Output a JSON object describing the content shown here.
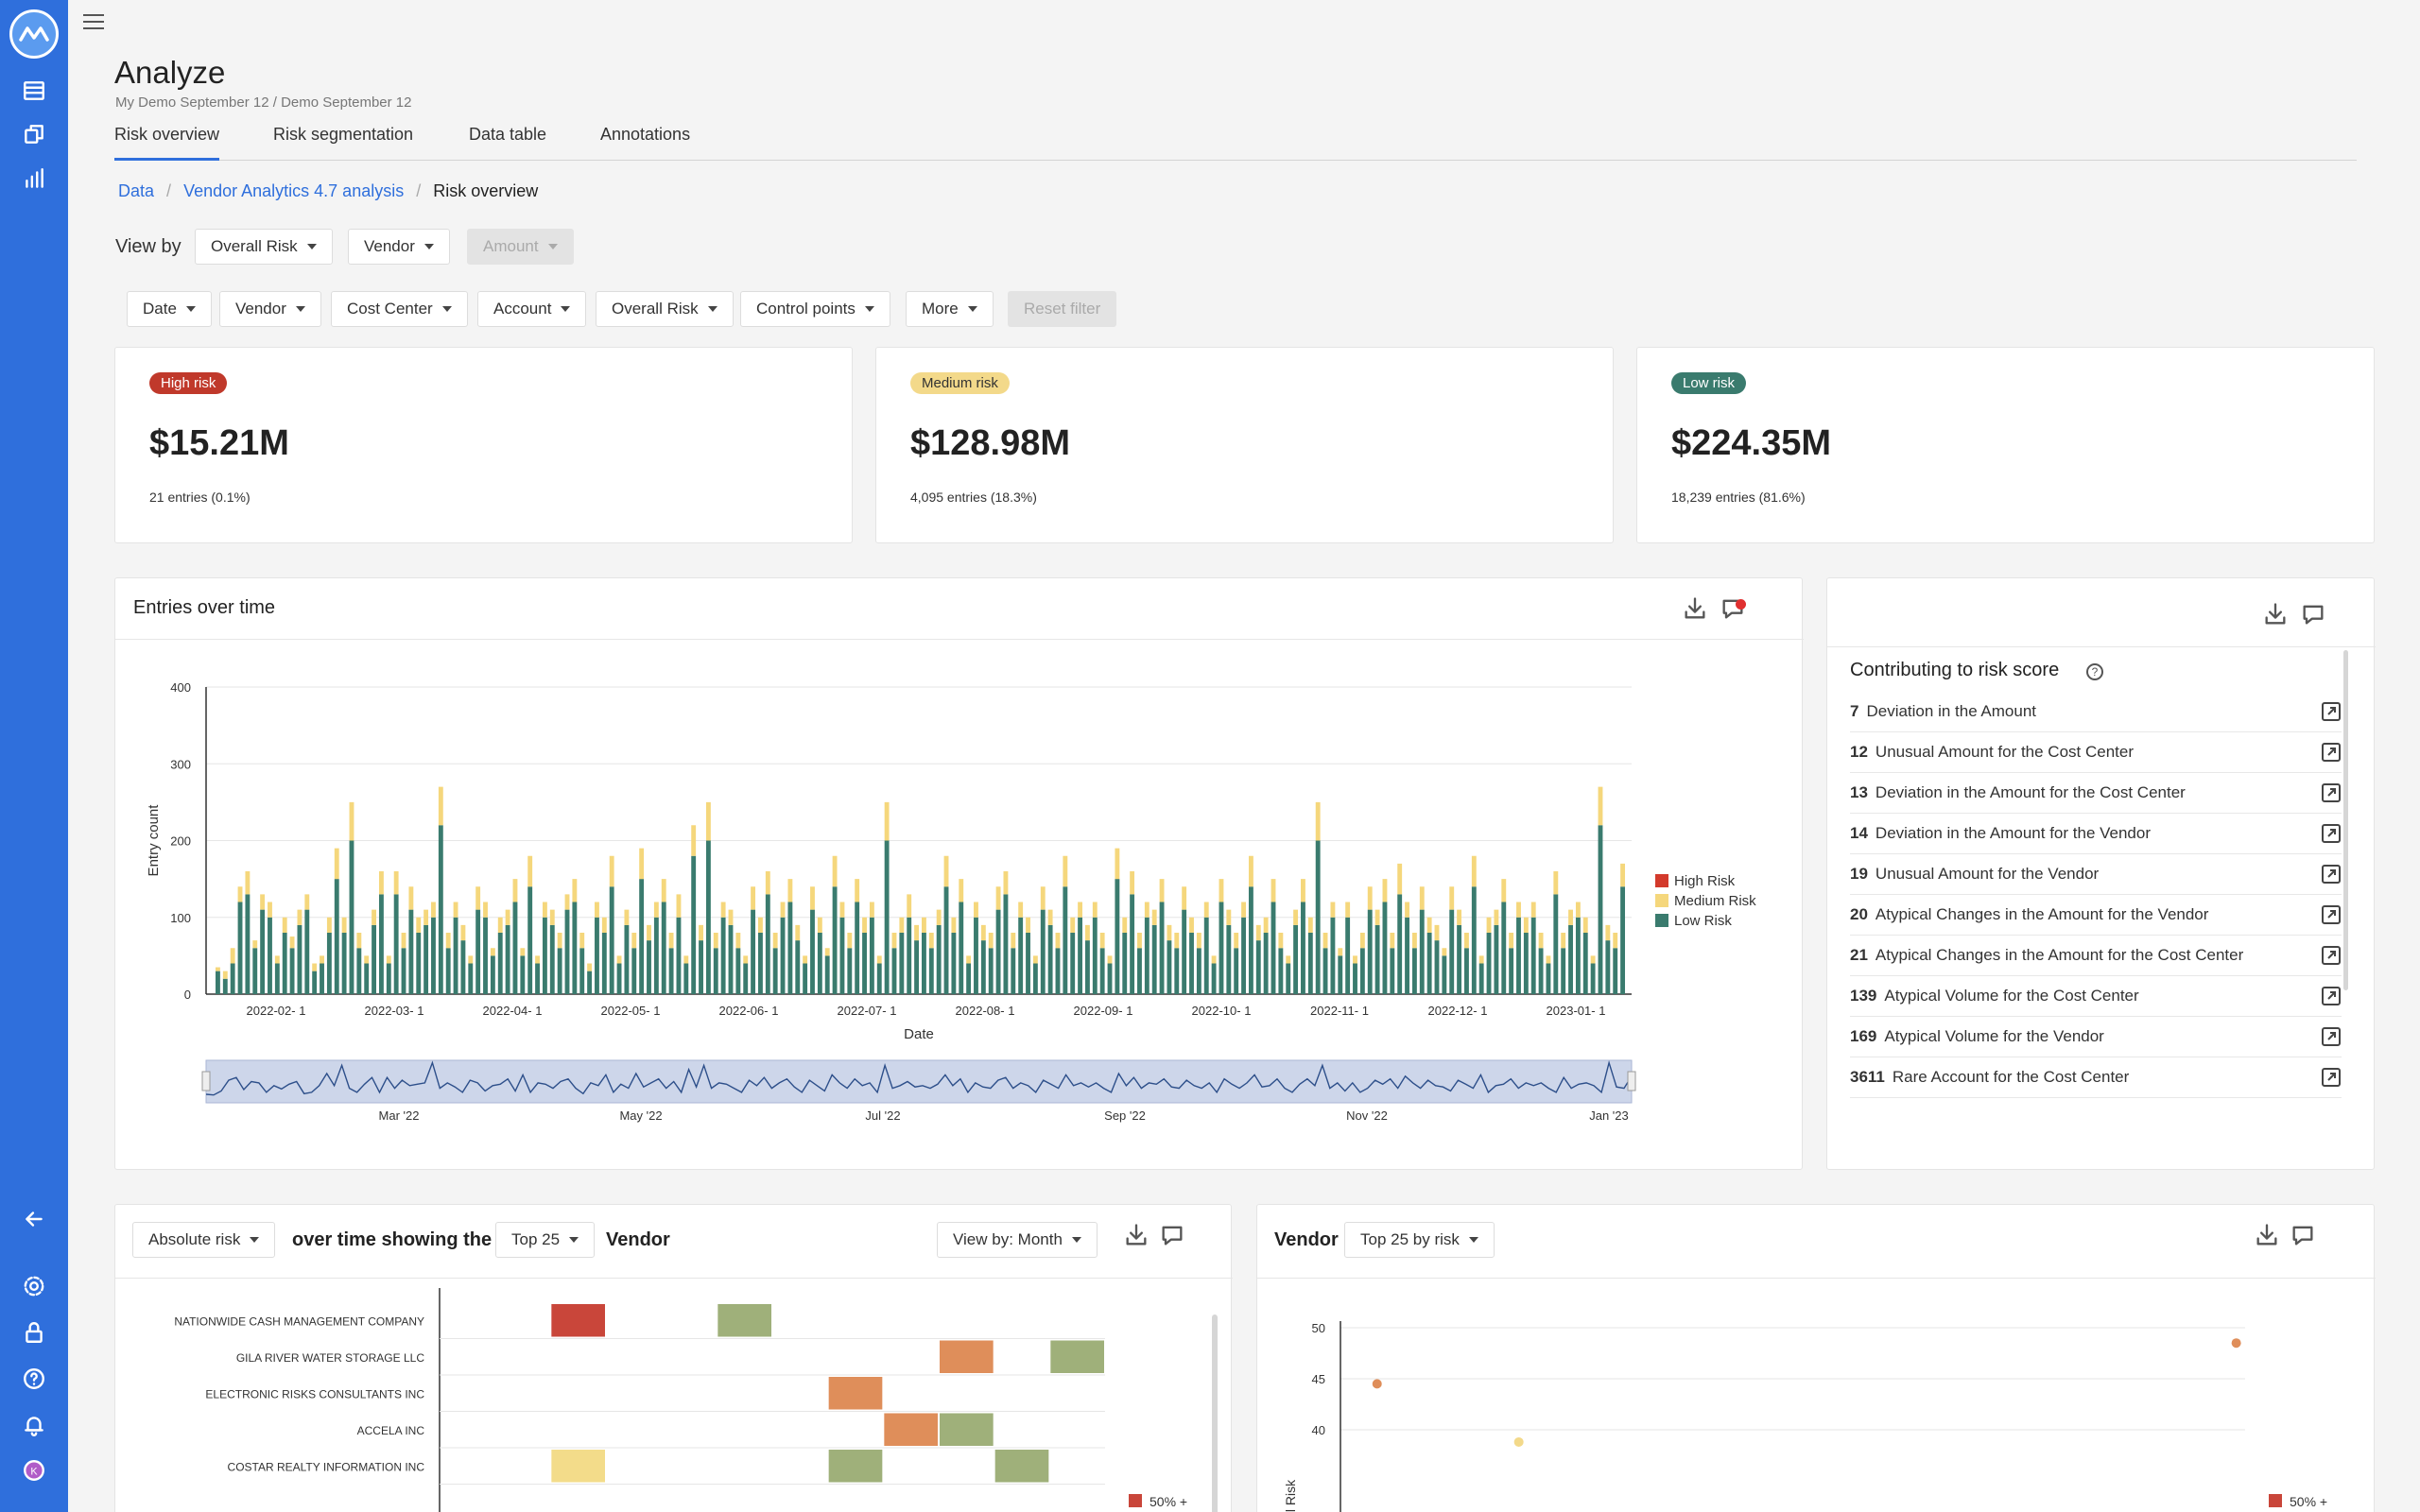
{
  "header": {
    "title": "Analyze",
    "subtitle": "My Demo September 12 / Demo September 12"
  },
  "tabs": [
    {
      "label": "Risk overview",
      "active": true
    },
    {
      "label": "Risk segmentation",
      "active": false
    },
    {
      "label": "Data table",
      "active": false
    },
    {
      "label": "Annotations",
      "active": false
    }
  ],
  "breadcrumb": [
    "Data",
    "Vendor Analytics 4.7 analysis",
    "Risk overview"
  ],
  "view_by": {
    "label": "View by",
    "options": [
      "Overall Risk",
      "Vendor",
      "Amount"
    ]
  },
  "filters": {
    "items": [
      "Date",
      "Vendor",
      "Cost Center",
      "Account",
      "Overall Risk",
      "Control points",
      "More"
    ],
    "reset_label": "Reset filter"
  },
  "kpis": [
    {
      "badge": "High risk",
      "value": "$15.21M",
      "sub": "21 entries (0.1%)",
      "color": "#c0392b"
    },
    {
      "badge": "Medium risk",
      "value": "$128.98M",
      "sub": "4,095 entries (18.3%)",
      "color": "#f3d98a"
    },
    {
      "badge": "Low risk",
      "value": "$224.35M",
      "sub": "18,239 entries (81.6%)",
      "color": "#3a7b6e"
    }
  ],
  "entries_panel": {
    "title": "Entries over time",
    "chart_data": {
      "type": "bar",
      "stacked": true,
      "ylabel": "Entry count",
      "xlabel": "Date",
      "ylim": [
        0,
        400
      ],
      "yticks": [
        0,
        100,
        200,
        300,
        400
      ],
      "xticks": [
        "2022-02- 1",
        "2022-03- 1",
        "2022-04- 1",
        "2022-05- 1",
        "2022-06- 1",
        "2022-07- 1",
        "2022-08- 1",
        "2022-09- 1",
        "2022-10- 1",
        "2022-11- 1",
        "2022-12- 1",
        "2023-01- 1"
      ],
      "navigator_ticks": [
        "Mar '22",
        "May '22",
        "Jul '22",
        "Sep '22",
        "Nov '22",
        "Jan '23"
      ],
      "legend": [
        {
          "name": "High Risk",
          "color": "#d33a2c"
        },
        {
          "name": "Medium Risk",
          "color": "#f5d77c"
        },
        {
          "name": "Low Risk",
          "color": "#3a7b6e"
        }
      ],
      "legend_position": "right",
      "series": [
        {
          "name": "Low Risk",
          "values": [
            30,
            20,
            40,
            120,
            130,
            60,
            110,
            100,
            40,
            80,
            60,
            90,
            110,
            30,
            40,
            80,
            150,
            80,
            200,
            60,
            40,
            90,
            130,
            40,
            130,
            60,
            110,
            80,
            90,
            100,
            220,
            60,
            100,
            70,
            40,
            110,
            100,
            50,
            80,
            90,
            120,
            50,
            140,
            40,
            100,
            90,
            60,
            110,
            120,
            60,
            30,
            100,
            80,
            140,
            40,
            90,
            60,
            150,
            70,
            100,
            120,
            60,
            100,
            40,
            180,
            70,
            200,
            60,
            100,
            90,
            60,
            40,
            110,
            80,
            130,
            60,
            100,
            120,
            70,
            40,
            110,
            80,
            50,
            140,
            100,
            60,
            120,
            80,
            100,
            40,
            200,
            60,
            80,
            100,
            70,
            80,
            60,
            90,
            140,
            80,
            120,
            40,
            100,
            70,
            60,
            110,
            130,
            60,
            100,
            80,
            40,
            110,
            90,
            60,
            140,
            80,
            100,
            70,
            100,
            60,
            40,
            150,
            80,
            130,
            60,
            100,
            90,
            120,
            70,
            60,
            110,
            80,
            60,
            100,
            40,
            120,
            90,
            60,
            100,
            140,
            70,
            80,
            120,
            60,
            40,
            90,
            120,
            80,
            200,
            60,
            100,
            50,
            100,
            40,
            60,
            110,
            90,
            120,
            60,
            130,
            100,
            60,
            110,
            80,
            70,
            50,
            110,
            90,
            60,
            140,
            40,
            80,
            90,
            120,
            60,
            100,
            80,
            100,
            60,
            40,
            130,
            60,
            90,
            100,
            80,
            40,
            220,
            70,
            60,
            140
          ]
        },
        {
          "name": "Medium Risk",
          "values": [
            5,
            10,
            20,
            20,
            30,
            10,
            20,
            20,
            10,
            20,
            15,
            20,
            20,
            10,
            10,
            20,
            40,
            20,
            50,
            20,
            10,
            20,
            30,
            10,
            30,
            20,
            30,
            20,
            20,
            20,
            50,
            20,
            20,
            20,
            10,
            30,
            20,
            10,
            20,
            20,
            30,
            10,
            40,
            10,
            20,
            20,
            20,
            20,
            30,
            20,
            10,
            20,
            20,
            40,
            10,
            20,
            20,
            40,
            20,
            20,
            30,
            20,
            30,
            10,
            40,
            20,
            50,
            20,
            20,
            20,
            20,
            10,
            30,
            20,
            30,
            20,
            20,
            30,
            20,
            10,
            30,
            20,
            10,
            40,
            20,
            20,
            30,
            20,
            20,
            10,
            50,
            20,
            20,
            30,
            20,
            20,
            20,
            20,
            40,
            20,
            30,
            10,
            20,
            20,
            20,
            30,
            30,
            20,
            20,
            20,
            10,
            30,
            20,
            20,
            40,
            20,
            20,
            20,
            20,
            20,
            10,
            40,
            20,
            30,
            20,
            20,
            20,
            30,
            20,
            20,
            30,
            20,
            20,
            20,
            10,
            30,
            20,
            20,
            20,
            40,
            20,
            20,
            30,
            20,
            10,
            20,
            30,
            20,
            50,
            20,
            20,
            10,
            20,
            10,
            20,
            30,
            20,
            30,
            20,
            40,
            20,
            20,
            30,
            20,
            20,
            10,
            30,
            20,
            20,
            40,
            10,
            20,
            20,
            30,
            20,
            20,
            20,
            20,
            20,
            10,
            30,
            20,
            20,
            20,
            20,
            10,
            50,
            20,
            20,
            30
          ]
        }
      ]
    }
  },
  "contributing": {
    "title": "Contributing to risk score",
    "items": [
      {
        "code": "7",
        "label": "Deviation in the Amount"
      },
      {
        "code": "12",
        "label": "Unusual Amount for the Cost Center"
      },
      {
        "code": "13",
        "label": "Deviation in the Amount for the Cost Center"
      },
      {
        "code": "14",
        "label": "Deviation in the Amount for the Vendor"
      },
      {
        "code": "19",
        "label": "Unusual Amount for the Vendor"
      },
      {
        "code": "20",
        "label": "Atypical Changes in the Amount for the Vendor"
      },
      {
        "code": "21",
        "label": "Atypical Changes in the Amount for the Cost Center"
      },
      {
        "code": "139",
        "label": "Atypical Volume for the Cost Center"
      },
      {
        "code": "169",
        "label": "Atypical Volume for the Vendor"
      },
      {
        "code": "3611",
        "label": "Rare Account for the Cost Center"
      }
    ]
  },
  "heatmap_panel": {
    "risk_select": "Absolute risk",
    "text_mid": "over time showing the",
    "top_select": "Top 25",
    "text_end": "Vendor",
    "viewby_select": "View by: Month",
    "chart_data": {
      "type": "heatmap",
      "rows": [
        "NATIONWIDE CASH MANAGEMENT COMPANY",
        "GILA RIVER WATER STORAGE LLC",
        "ELECTRONIC RISKS CONSULTANTS INC",
        "ACCELA INC",
        "COSTAR REALTY INFORMATION INC"
      ],
      "columns": 12,
      "cells": [
        {
          "row": 0,
          "col": 2,
          "color": "#c9463a"
        },
        {
          "row": 0,
          "col": 5,
          "color": "#9fb07a"
        },
        {
          "row": 1,
          "col": 9,
          "color": "#df8e5a"
        },
        {
          "row": 1,
          "col": 11,
          "color": "#9fb07a"
        },
        {
          "row": 2,
          "col": 7,
          "color": "#df8e5a"
        },
        {
          "row": 3,
          "col": 8,
          "color": "#df8e5a"
        },
        {
          "row": 3,
          "col": 9,
          "color": "#9fb07a"
        },
        {
          "row": 4,
          "col": 2,
          "color": "#f3dc8a"
        },
        {
          "row": 4,
          "col": 7,
          "color": "#9fb07a"
        },
        {
          "row": 4,
          "col": 10,
          "color": "#9fb07a"
        }
      ],
      "legend": "50% +"
    }
  },
  "scatter_panel": {
    "title": "Vendor",
    "select": "Top 25 by risk",
    "chart_data": {
      "type": "scatter",
      "yticks": [
        40,
        45,
        50
      ],
      "ylabel": "l Risk",
      "points": [
        {
          "x": 0.02,
          "y": 44.5,
          "color": "#df8e5a"
        },
        {
          "x": 0.18,
          "y": 38.8,
          "color": "#f3d98a"
        },
        {
          "x": 0.99,
          "y": 48.5,
          "color": "#df8e5a"
        }
      ],
      "legend": "50% +"
    }
  }
}
